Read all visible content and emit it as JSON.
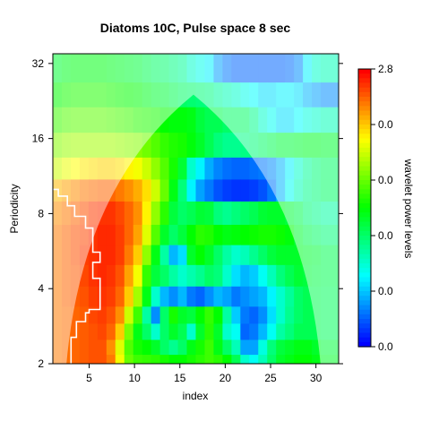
{
  "chart_data": {
    "type": "heatmap",
    "title": "Diatoms 10C, Pulse space 8 sec",
    "xlabel": "index",
    "ylabel": "Periodicity",
    "x_range": [
      1,
      32.5
    ],
    "x_ticks": [
      5,
      10,
      15,
      20,
      25,
      30
    ],
    "y_scale": "log2",
    "y_range": [
      2,
      35
    ],
    "y_ticks": [
      2,
      4,
      8,
      16,
      32
    ],
    "colorbar": {
      "label": "wavelet power levels",
      "tick_labels": [
        "2.8",
        "0.0",
        "0.0",
        "0.0",
        "0.0",
        "0.0"
      ],
      "colors": [
        "#0000ff",
        "#00ffff",
        "#00ff00",
        "#ffff00",
        "#ff0000"
      ]
    },
    "cone_of_influence": {
      "peak_index": 16.5,
      "peak_period": 24,
      "left_base_index": 2.5,
      "right_base_index": 30.5
    },
    "significance_contour_color": "#ffffff",
    "rows": [
      {
        "period": 30,
        "values": [
          0.45,
          0.47,
          0.48,
          0.48,
          0.48,
          0.48,
          0.47,
          0.46,
          0.45,
          0.44,
          0.42,
          0.4,
          0.39,
          0.37,
          0.35,
          0.3,
          0.27,
          0.24,
          0.16,
          0.12,
          0.1,
          0.1,
          0.1,
          0.1,
          0.1,
          0.1,
          0.11,
          0.14,
          0.24,
          0.3,
          0.32,
          0.32
        ]
      },
      {
        "period": 24,
        "values": [
          0.5,
          0.52,
          0.53,
          0.53,
          0.53,
          0.53,
          0.52,
          0.51,
          0.5,
          0.49,
          0.47,
          0.45,
          0.44,
          0.42,
          0.4,
          0.39,
          0.38,
          0.37,
          0.34,
          0.32,
          0.3,
          0.27,
          0.25,
          0.22,
          0.22,
          0.24,
          0.24,
          0.22,
          0.18,
          0.16,
          0.14,
          0.14
        ]
      },
      {
        "period": 19,
        "values": [
          0.56,
          0.58,
          0.59,
          0.59,
          0.59,
          0.59,
          0.58,
          0.57,
          0.56,
          0.54,
          0.53,
          0.52,
          0.5,
          0.49,
          0.49,
          0.48,
          0.44,
          0.42,
          0.42,
          0.4,
          0.4,
          0.4,
          0.36,
          0.3,
          0.26,
          0.22,
          0.22,
          0.25,
          0.28,
          0.3,
          0.32,
          0.32
        ]
      },
      {
        "period": 15,
        "values": [
          0.63,
          0.65,
          0.66,
          0.66,
          0.66,
          0.66,
          0.66,
          0.65,
          0.64,
          0.63,
          0.61,
          0.58,
          0.55,
          0.53,
          0.52,
          0.49,
          0.46,
          0.42,
          0.38,
          0.36,
          0.36,
          0.37,
          0.38,
          0.4,
          0.42,
          0.44,
          0.44,
          0.45,
          0.46,
          0.46,
          0.45,
          0.45
        ]
      },
      {
        "period": 12,
        "values": [
          0.7,
          0.73,
          0.75,
          0.77,
          0.78,
          0.79,
          0.79,
          0.78,
          0.76,
          0.74,
          0.7,
          0.64,
          0.58,
          0.52,
          0.45,
          0.3,
          0.24,
          0.17,
          0.13,
          0.11,
          0.1,
          0.1,
          0.11,
          0.12,
          0.14,
          0.18,
          0.24,
          0.3,
          0.35,
          0.38,
          0.4,
          0.4
        ]
      },
      {
        "period": 10,
        "values": [
          0.82,
          0.84,
          0.86,
          0.88,
          0.89,
          0.9,
          0.9,
          0.88,
          0.86,
          0.83,
          0.78,
          0.7,
          0.6,
          0.48,
          0.38,
          0.24,
          0.16,
          0.12,
          0.08,
          0.06,
          0.05,
          0.05,
          0.06,
          0.08,
          0.12,
          0.18,
          0.26,
          0.32,
          0.36,
          0.38,
          0.4,
          0.4
        ]
      },
      {
        "period": 8,
        "values": [
          0.86,
          0.88,
          0.9,
          0.92,
          0.94,
          0.95,
          0.95,
          0.93,
          0.9,
          0.86,
          0.76,
          0.64,
          0.54,
          0.44,
          0.4,
          0.42,
          0.45,
          0.44,
          0.38,
          0.36,
          0.38,
          0.4,
          0.42,
          0.45,
          0.46,
          0.46,
          0.44,
          0.42,
          0.38,
          0.36,
          0.34,
          0.34
        ]
      },
      {
        "period": 6.5,
        "values": [
          0.88,
          0.9,
          0.92,
          0.93,
          0.95,
          0.96,
          0.96,
          0.94,
          0.9,
          0.84,
          0.72,
          0.58,
          0.46,
          0.4,
          0.44,
          0.5,
          0.54,
          0.53,
          0.5,
          0.48,
          0.49,
          0.5,
          0.51,
          0.52,
          0.52,
          0.51,
          0.49,
          0.45,
          0.42,
          0.4,
          0.38,
          0.38
        ]
      },
      {
        "period": 5.5,
        "values": [
          0.88,
          0.9,
          0.92,
          0.94,
          0.95,
          0.96,
          0.96,
          0.94,
          0.88,
          0.8,
          0.64,
          0.48,
          0.34,
          0.18,
          0.22,
          0.46,
          0.5,
          0.46,
          0.4,
          0.34,
          0.3,
          0.32,
          0.36,
          0.4,
          0.44,
          0.46,
          0.46,
          0.46,
          0.45,
          0.44,
          0.42,
          0.42
        ]
      },
      {
        "period": 4.5,
        "values": [
          0.88,
          0.9,
          0.91,
          0.93,
          0.95,
          0.96,
          0.95,
          0.92,
          0.84,
          0.74,
          0.55,
          0.44,
          0.4,
          0.34,
          0.3,
          0.33,
          0.36,
          0.4,
          0.38,
          0.3,
          0.22,
          0.18,
          0.2,
          0.26,
          0.32,
          0.38,
          0.42,
          0.45,
          0.44,
          0.43,
          0.42,
          0.42
        ]
      },
      {
        "period": 3.7,
        "values": [
          0.88,
          0.9,
          0.91,
          0.92,
          0.94,
          0.95,
          0.94,
          0.9,
          0.8,
          0.66,
          0.48,
          0.3,
          0.18,
          0.14,
          0.18,
          0.12,
          0.1,
          0.14,
          0.18,
          0.16,
          0.12,
          0.14,
          0.16,
          0.18,
          0.24,
          0.3,
          0.35,
          0.4,
          0.42,
          0.42,
          0.41,
          0.41
        ]
      },
      {
        "period": 3.1,
        "values": [
          0.88,
          0.89,
          0.9,
          0.91,
          0.93,
          0.94,
          0.92,
          0.86,
          0.7,
          0.56,
          0.34,
          0.14,
          0.4,
          0.52,
          0.46,
          0.44,
          0.5,
          0.55,
          0.5,
          0.34,
          0.2,
          0.12,
          0.1,
          0.14,
          0.22,
          0.3,
          0.36,
          0.4,
          0.42,
          0.42,
          0.41,
          0.41
        ]
      },
      {
        "period": 2.7,
        "values": [
          0.88,
          0.89,
          0.9,
          0.91,
          0.92,
          0.93,
          0.9,
          0.8,
          0.62,
          0.48,
          0.4,
          0.3,
          0.4,
          0.46,
          0.42,
          0.3,
          0.46,
          0.54,
          0.46,
          0.3,
          0.26,
          0.1,
          0.12,
          0.18,
          0.26,
          0.34,
          0.38,
          0.42,
          0.42,
          0.42,
          0.41,
          0.41
        ]
      },
      {
        "period": 2.3,
        "values": [
          0.88,
          0.89,
          0.9,
          0.91,
          0.92,
          0.92,
          0.86,
          0.72,
          0.58,
          0.52,
          0.5,
          0.46,
          0.4,
          0.36,
          0.4,
          0.48,
          0.52,
          0.56,
          0.48,
          0.4,
          0.32,
          0.16,
          0.16,
          0.28,
          0.38,
          0.44,
          0.46,
          0.48,
          0.48,
          0.46,
          0.44,
          0.44
        ]
      },
      {
        "period": 2.05,
        "values": [
          0.88,
          0.89,
          0.9,
          0.91,
          0.92,
          0.92,
          0.88,
          0.74,
          0.6,
          0.56,
          0.55,
          0.54,
          0.52,
          0.5,
          0.5,
          0.52,
          0.54,
          0.56,
          0.54,
          0.5,
          0.42,
          0.3,
          0.26,
          0.32,
          0.4,
          0.46,
          0.48,
          0.5,
          0.5,
          0.48,
          0.46,
          0.46
        ]
      }
    ]
  }
}
